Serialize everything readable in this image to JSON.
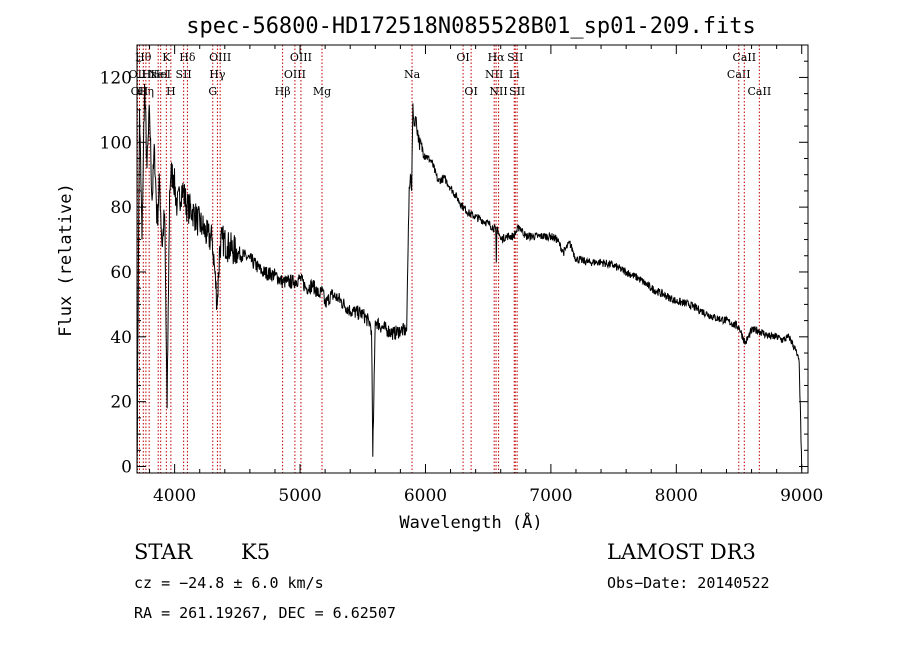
{
  "chart_data": {
    "type": "line",
    "title": "spec-56800-HD172518N085528B01_sp01-209.fits",
    "xlabel": "Wavelength (Å)",
    "ylabel": "Flux (relative)",
    "xlim": [
      3700,
      9050
    ],
    "ylim": [
      -2,
      130
    ],
    "x_ticks": [
      4000,
      5000,
      6000,
      7000,
      8000,
      9000
    ],
    "y_ticks": [
      0,
      20,
      40,
      60,
      80,
      100,
      120
    ],
    "grid": false,
    "series": [
      {
        "name": "flux",
        "x": [
          3700,
          3720,
          3740,
          3760,
          3780,
          3800,
          3820,
          3840,
          3860,
          3880,
          3900,
          3920,
          3940,
          3960,
          3970,
          3990,
          4020,
          4060,
          4100,
          4140,
          4180,
          4220,
          4260,
          4300,
          4340,
          4360,
          4380,
          4420,
          4500,
          4600,
          4700,
          4800,
          4860,
          4900,
          4950,
          5000,
          5050,
          5100,
          5150,
          5180,
          5200,
          5250,
          5300,
          5400,
          5500,
          5560,
          5570,
          5580,
          5600,
          5650,
          5700,
          5750,
          5800,
          5850,
          5870,
          5880,
          5890,
          5900,
          5910,
          5920,
          5950,
          6000,
          6050,
          6100,
          6150,
          6200,
          6250,
          6300,
          6350,
          6400,
          6450,
          6500,
          6560,
          6565,
          6570,
          6600,
          6650,
          6700,
          6750,
          6800,
          6900,
          7000,
          7050,
          7100,
          7150,
          7200,
          7300,
          7400,
          7500,
          7600,
          7700,
          7800,
          7900,
          8000,
          8100,
          8200,
          8300,
          8400,
          8500,
          8550,
          8600,
          8650,
          8700,
          8750,
          8800,
          8850,
          8900,
          8950,
          8980,
          9000
        ],
        "y": [
          0,
          110,
          70,
          118,
          92,
          110,
          82,
          98,
          75,
          88,
          68,
          78,
          18,
          85,
          90,
          90,
          80,
          86,
          80,
          79,
          76,
          74,
          71,
          70,
          50,
          68,
          70,
          68,
          66,
          64,
          60,
          59,
          57,
          57,
          57,
          58,
          55,
          56,
          53,
          54,
          50,
          53,
          52,
          48,
          47,
          44,
          42,
          3,
          45,
          43,
          42,
          41,
          42,
          42,
          86,
          90,
          85,
          112,
          105,
          108,
          100,
          96,
          94,
          88,
          89,
          86,
          83,
          80,
          78,
          77,
          76,
          75,
          73,
          63,
          74,
          70,
          71,
          71,
          74,
          71,
          71,
          71,
          70,
          66,
          69,
          64,
          63,
          63,
          62,
          60,
          58,
          55,
          53,
          51,
          50,
          48,
          46,
          45,
          43,
          38,
          42,
          42,
          41,
          40,
          40,
          39,
          40,
          36,
          32,
          -1
        ]
      }
    ],
    "line_markers": [
      {
        "x": 3704,
        "label": "OII",
        "row": 1
      },
      {
        "x": 3720,
        "label": "OII",
        "row": 2
      },
      {
        "x": 3750,
        "label": "Hθ",
        "row": 0
      },
      {
        "x": 3771,
        "label": "Hη",
        "row": 2
      },
      {
        "x": 3797,
        "label": "Hε",
        "row": 1
      },
      {
        "x": 3869,
        "label": "NeI",
        "row": 1
      },
      {
        "x": 3889,
        "label": "HeI",
        "row": 1
      },
      {
        "x": 3934,
        "label": "K",
        "row": 0
      },
      {
        "x": 3970,
        "label": "H",
        "row": 2
      },
      {
        "x": 4072,
        "label": "SII",
        "row": 1
      },
      {
        "x": 4102,
        "label": "Hδ",
        "row": 0
      },
      {
        "x": 4304,
        "label": "G",
        "row": 2
      },
      {
        "x": 4341,
        "label": "Hγ",
        "row": 1
      },
      {
        "x": 4363,
        "label": "OIII",
        "row": 0
      },
      {
        "x": 4861,
        "label": "Hβ",
        "row": 2
      },
      {
        "x": 4959,
        "label": "OIII",
        "row": 1
      },
      {
        "x": 5007,
        "label": "OIII",
        "row": 0
      },
      {
        "x": 5175,
        "label": "Mg",
        "row": 2
      },
      {
        "x": 5893,
        "label": "Na",
        "row": 1
      },
      {
        "x": 6300,
        "label": "OI",
        "row": 0
      },
      {
        "x": 6364,
        "label": "OI",
        "row": 2
      },
      {
        "x": 6548,
        "label": "NII",
        "row": 1
      },
      {
        "x": 6563,
        "label": "Hα",
        "row": 0
      },
      {
        "x": 6583,
        "label": "NII",
        "row": 2
      },
      {
        "x": 6708,
        "label": "Li",
        "row": 1
      },
      {
        "x": 6716,
        "label": "SII",
        "row": 0
      },
      {
        "x": 6731,
        "label": "SII",
        "row": 2
      },
      {
        "x": 8498,
        "label": "CaII",
        "row": 1
      },
      {
        "x": 8542,
        "label": "CaII",
        "row": 0
      },
      {
        "x": 8662,
        "label": "CaII",
        "row": 2
      }
    ]
  },
  "footer": {
    "object_class": "STAR",
    "subclass": "K5",
    "survey": "LAMOST DR3",
    "cz": "cz = −24.8 ± 6.0 km/s",
    "obs_date": "Obs−Date: 20140522",
    "coords": "RA = 261.19267, DEC =   6.62507"
  }
}
